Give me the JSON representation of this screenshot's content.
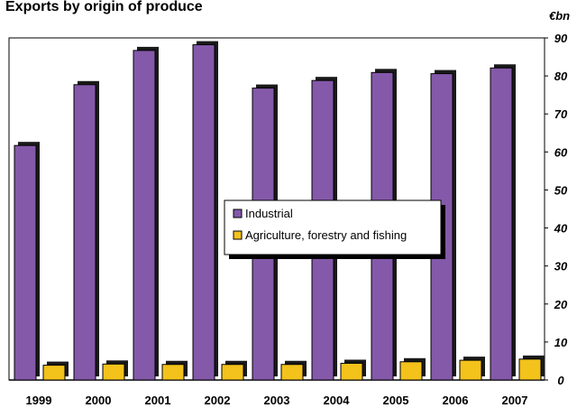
{
  "chart_data": {
    "type": "bar",
    "title": "Exports by origin of produce",
    "unit_label": "€bn",
    "categories": [
      "1999",
      "2000",
      "2001",
      "2002",
      "2003",
      "2004",
      "2005",
      "2006",
      "2007"
    ],
    "series": [
      {
        "name": "Industrial",
        "color": "#8459A9",
        "values": [
          61.7,
          77.7,
          86.7,
          88.2,
          76.8,
          78.8,
          80.9,
          80.6,
          82.1
        ]
      },
      {
        "name": "Agriculture, forestry and fishing",
        "color": "#F3C21B",
        "values": [
          3.9,
          4.2,
          4.1,
          4.1,
          4.1,
          4.4,
          4.8,
          5.2,
          5.5
        ]
      }
    ],
    "ylim": [
      0,
      90
    ],
    "yticks": [
      0,
      10,
      20,
      30,
      40,
      50,
      60,
      70,
      80,
      90
    ],
    "y_axis_side": "right",
    "grid": false,
    "legend_placement": "center"
  }
}
